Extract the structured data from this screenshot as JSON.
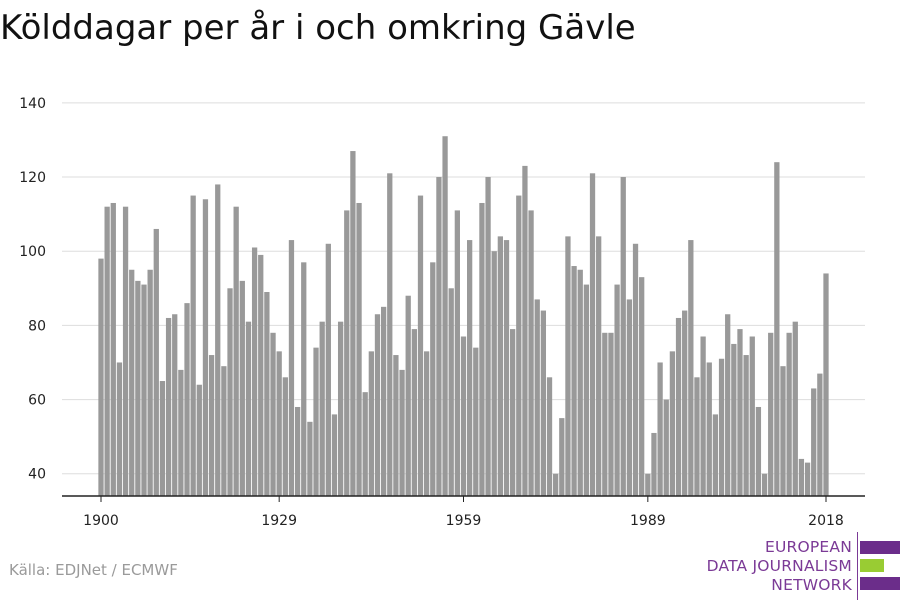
{
  "title": "Kölddagar per år i och omkring Gävle",
  "source": "Källa: EDJNet / ECMWF",
  "logo": {
    "lines": [
      "EUROPEAN",
      "DATA JOURNALISM",
      "NETWORK"
    ],
    "text_color": "#7b3a96",
    "bar_colors": [
      "#6b2d8a",
      "#99cc33",
      "#6b2d8a"
    ]
  },
  "chart_data": {
    "type": "bar",
    "title": "Kölddagar per år i och omkring Gävle",
    "xlabel": "",
    "ylabel": "",
    "ylim": [
      34,
      144
    ],
    "y_ticks": [
      40,
      60,
      80,
      100,
      120,
      140
    ],
    "x_ticks": [
      1900,
      1929,
      1959,
      1989,
      2018
    ],
    "grid": true,
    "bar_color": "#999999",
    "x": [
      1900,
      1901,
      1902,
      1903,
      1904,
      1905,
      1906,
      1907,
      1908,
      1909,
      1910,
      1911,
      1912,
      1913,
      1914,
      1915,
      1916,
      1917,
      1918,
      1919,
      1920,
      1921,
      1922,
      1923,
      1924,
      1925,
      1926,
      1927,
      1928,
      1929,
      1930,
      1931,
      1932,
      1933,
      1934,
      1935,
      1936,
      1937,
      1938,
      1939,
      1940,
      1941,
      1942,
      1943,
      1944,
      1945,
      1946,
      1947,
      1948,
      1949,
      1950,
      1951,
      1952,
      1953,
      1954,
      1955,
      1956,
      1957,
      1958,
      1959,
      1960,
      1961,
      1962,
      1963,
      1964,
      1965,
      1966,
      1967,
      1968,
      1969,
      1970,
      1971,
      1972,
      1973,
      1974,
      1975,
      1976,
      1977,
      1978,
      1979,
      1980,
      1981,
      1982,
      1983,
      1984,
      1985,
      1986,
      1987,
      1988,
      1989,
      1990,
      1991,
      1992,
      1993,
      1994,
      1995,
      1996,
      1997,
      1998,
      1999,
      2000,
      2001,
      2002,
      2003,
      2004,
      2005,
      2006,
      2007,
      2008,
      2009,
      2010,
      2011,
      2012,
      2013,
      2014,
      2015,
      2016,
      2017,
      2018
    ],
    "values": [
      98,
      112,
      113,
      70,
      112,
      95,
      92,
      91,
      95,
      106,
      65,
      82,
      83,
      68,
      86,
      115,
      64,
      114,
      72,
      118,
      69,
      90,
      112,
      92,
      81,
      101,
      99,
      89,
      78,
      73,
      66,
      103,
      58,
      97,
      54,
      74,
      81,
      102,
      56,
      81,
      111,
      127,
      113,
      62,
      73,
      83,
      85,
      121,
      72,
      68,
      88,
      79,
      115,
      73,
      97,
      120,
      131,
      90,
      111,
      77,
      103,
      74,
      113,
      120,
      100,
      104,
      103,
      79,
      115,
      123,
      111,
      87,
      84,
      66,
      40,
      55,
      104,
      96,
      95,
      91,
      121,
      104,
      78,
      78,
      91,
      120,
      87,
      102,
      93,
      40,
      51,
      70,
      60,
      73,
      82,
      84,
      103,
      66,
      77,
      70,
      56,
      71,
      83,
      75,
      79,
      72,
      77,
      58,
      40,
      78,
      124,
      69,
      78,
      81,
      44,
      43,
      63,
      67,
      94
    ]
  }
}
